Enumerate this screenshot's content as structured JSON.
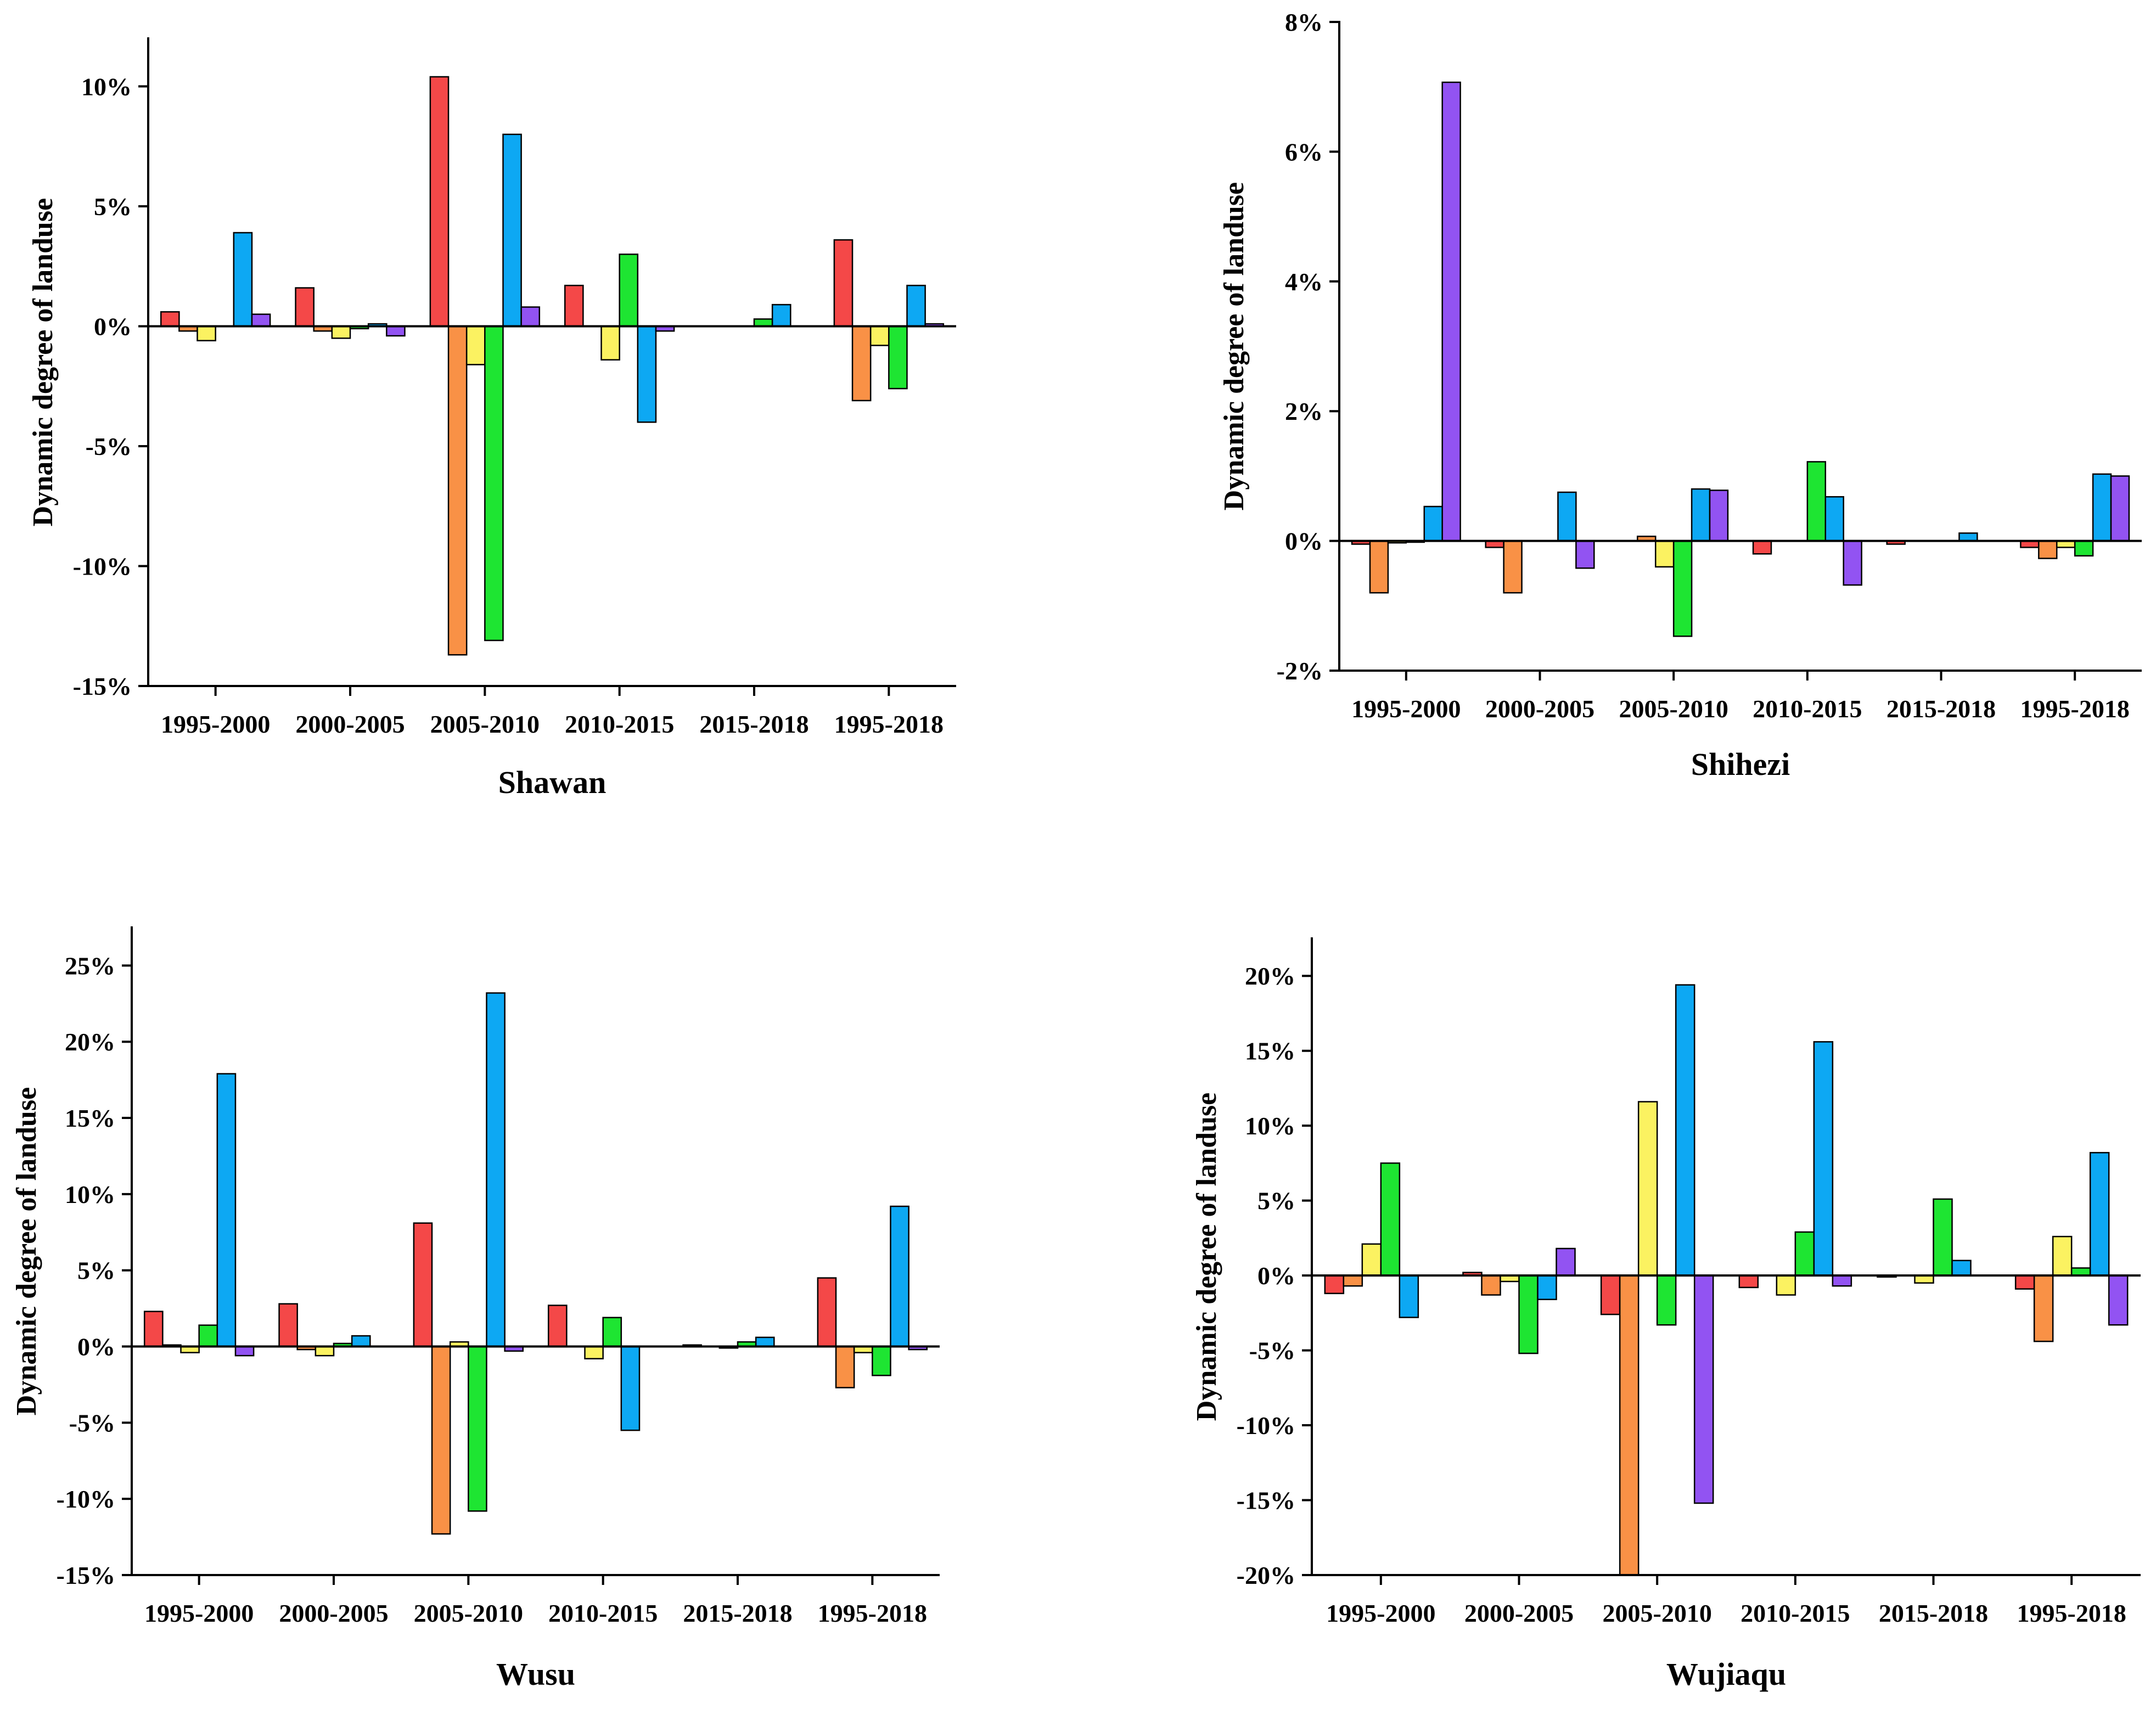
{
  "chart_data": [
    {
      "type": "bar",
      "title": "Shawan",
      "ylabel": "Dynamic degree of landuse",
      "xlabel": "",
      "categories": [
        "1995-2000",
        "2000-2005",
        "2005-2010",
        "2010-2015",
        "2015-2018",
        "1995-2018"
      ],
      "yticks": [
        10,
        5,
        0,
        -5,
        -10,
        -15
      ],
      "ytick_labels": [
        "10%",
        "5%",
        "0%",
        "-5%",
        "-10%",
        "-15%"
      ],
      "ylim": [
        -15,
        12
      ],
      "series": [
        {
          "name": "red",
          "color": "#f44848",
          "values": [
            0.6,
            1.6,
            10.4,
            1.7,
            0.0,
            3.6
          ]
        },
        {
          "name": "orange",
          "color": "#f99146",
          "values": [
            -0.2,
            -0.2,
            -13.7,
            0.0,
            0.0,
            -3.1
          ]
        },
        {
          "name": "yellow",
          "color": "#fbf261",
          "values": [
            -0.6,
            -0.5,
            -1.6,
            -1.4,
            0.0,
            -0.8
          ]
        },
        {
          "name": "green",
          "color": "#1ee532",
          "values": [
            0.0,
            -0.1,
            -13.1,
            3.0,
            0.3,
            -2.6
          ]
        },
        {
          "name": "blue",
          "color": "#0da8f3",
          "values": [
            3.9,
            0.1,
            8.0,
            -4.0,
            0.9,
            1.7
          ]
        },
        {
          "name": "purple",
          "color": "#9253f2",
          "values": [
            0.5,
            -0.4,
            0.8,
            -0.2,
            0.0,
            0.1
          ]
        }
      ]
    },
    {
      "type": "bar",
      "title": "Shihezi",
      "ylabel": "Dynamic degree of landuse",
      "xlabel": "",
      "categories": [
        "1995-2000",
        "2000-2005",
        "2005-2010",
        "2010-2015",
        "2015-2018",
        "1995-2018"
      ],
      "yticks": [
        8,
        6,
        4,
        2,
        0,
        -2
      ],
      "ytick_labels": [
        "8%",
        "6%",
        "4%",
        "2%",
        "0%",
        "-2%"
      ],
      "ylim": [
        -2,
        8
      ],
      "series": [
        {
          "name": "red",
          "color": "#f44848",
          "values": [
            -0.05,
            -0.1,
            0.0,
            -0.2,
            -0.05,
            -0.1
          ]
        },
        {
          "name": "orange",
          "color": "#f99146",
          "values": [
            -0.8,
            -0.8,
            0.07,
            0.0,
            0.0,
            -0.27
          ]
        },
        {
          "name": "yellow",
          "color": "#fbf261",
          "values": [
            -0.03,
            0.0,
            -0.4,
            0.0,
            0.0,
            -0.1
          ]
        },
        {
          "name": "green",
          "color": "#1ee532",
          "values": [
            -0.02,
            0.0,
            -1.47,
            1.22,
            0.0,
            -0.23
          ]
        },
        {
          "name": "blue",
          "color": "#0da8f3",
          "values": [
            0.53,
            0.75,
            0.8,
            0.68,
            0.12,
            1.03
          ]
        },
        {
          "name": "purple",
          "color": "#9253f2",
          "values": [
            7.07,
            -0.42,
            0.78,
            -0.68,
            0.0,
            1.0
          ]
        }
      ]
    },
    {
      "type": "bar",
      "title": "Wusu",
      "ylabel": "Dynamic degree of landuse",
      "xlabel": "",
      "categories": [
        "1995-2000",
        "2000-2005",
        "2005-2010",
        "2010-2015",
        "2015-2018",
        "1995-2018"
      ],
      "yticks": [
        25,
        20,
        15,
        10,
        5,
        0,
        -5,
        -10,
        -15
      ],
      "ytick_labels": [
        "25%",
        "20%",
        "15%",
        "10%",
        "5%",
        "0%",
        "-5%",
        "-10%",
        "-15%"
      ],
      "ylim": [
        -15,
        27.5
      ],
      "series": [
        {
          "name": "red",
          "color": "#f44848",
          "values": [
            2.3,
            2.8,
            8.1,
            2.7,
            0.1,
            4.5
          ]
        },
        {
          "name": "orange",
          "color": "#f99146",
          "values": [
            0.1,
            -0.2,
            -12.3,
            0.0,
            0.0,
            -2.7
          ]
        },
        {
          "name": "yellow",
          "color": "#fbf261",
          "values": [
            -0.4,
            -0.6,
            0.3,
            -0.8,
            -0.1,
            -0.4
          ]
        },
        {
          "name": "green",
          "color": "#1ee532",
          "values": [
            1.4,
            0.2,
            -10.8,
            1.9,
            0.3,
            -1.9
          ]
        },
        {
          "name": "blue",
          "color": "#0da8f3",
          "values": [
            17.9,
            0.7,
            23.2,
            -5.5,
            0.6,
            9.2
          ]
        },
        {
          "name": "purple",
          "color": "#9253f2",
          "values": [
            -0.6,
            0.0,
            -0.3,
            0.0,
            0.0,
            -0.2
          ]
        }
      ]
    },
    {
      "type": "bar",
      "title": "Wujiaqu",
      "ylabel": "Dynamic degree of landuse",
      "xlabel": "",
      "categories": [
        "1995-2000",
        "2000-2005",
        "2005-2010",
        "2010-2015",
        "2015-2018",
        "1995-2018"
      ],
      "yticks": [
        20,
        15,
        10,
        5,
        0,
        -5,
        -10,
        -15,
        -20
      ],
      "ytick_labels": [
        "20%",
        "15%",
        "10%",
        "5%",
        "0%",
        "-5%",
        "-10%",
        "-15%",
        "-20%"
      ],
      "ylim": [
        -20,
        22.5
      ],
      "series": [
        {
          "name": "red",
          "color": "#f44848",
          "values": [
            -1.2,
            0.2,
            -2.6,
            -0.8,
            -0.1,
            -0.9
          ]
        },
        {
          "name": "orange",
          "color": "#f99146",
          "values": [
            -0.7,
            -1.3,
            -20.0,
            0.0,
            0.0,
            -4.4
          ]
        },
        {
          "name": "yellow",
          "color": "#fbf261",
          "values": [
            2.1,
            -0.4,
            11.6,
            -1.3,
            -0.5,
            2.6
          ]
        },
        {
          "name": "green",
          "color": "#1ee532",
          "values": [
            7.5,
            -5.2,
            -3.3,
            2.9,
            5.1,
            0.5
          ]
        },
        {
          "name": "blue",
          "color": "#0da8f3",
          "values": [
            -2.8,
            -1.6,
            19.4,
            15.6,
            1.0,
            8.2
          ]
        },
        {
          "name": "purple",
          "color": "#9253f2",
          "values": [
            0.0,
            1.8,
            -15.2,
            -0.7,
            0.0,
            -3.3
          ]
        }
      ]
    }
  ]
}
